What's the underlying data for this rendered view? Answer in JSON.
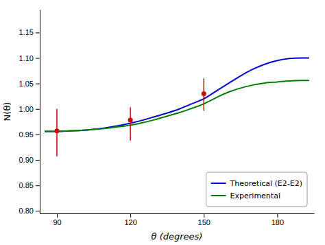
{
  "chart_data": {
    "type": "line",
    "xlabel": "θ (degrees)",
    "ylabel": "N(θ)",
    "xlim": [
      83,
      195
    ],
    "ylim": [
      0.795,
      1.195
    ],
    "xticks": [
      90,
      120,
      150,
      180
    ],
    "yticks": [
      {
        "value": 0.8,
        "label": "0.80"
      },
      0.85,
      {
        "value": 0.9,
        "label": "0.90"
      },
      0.95,
      {
        "value": 1.0,
        "label": "1.00"
      },
      1.05,
      {
        "value": 1.1,
        "label": "1.10"
      },
      1.15
    ],
    "grid": false,
    "legend": "lower right",
    "series": [
      {
        "name": "Theoretical (E2-E2)",
        "type": "line",
        "color": "#0000cc",
        "line_style": "solid",
        "x": [
          85,
          90,
          95,
          100,
          105,
          110,
          115,
          120,
          125,
          130,
          135,
          140,
          145,
          150,
          155,
          160,
          165,
          170,
          175,
          180,
          185,
          190,
          193
        ],
        "values": [
          0.956,
          0.956,
          0.957,
          0.958,
          0.96,
          0.963,
          0.967,
          0.972,
          0.978,
          0.985,
          0.992,
          1.0,
          1.01,
          1.02,
          1.035,
          1.05,
          1.065,
          1.078,
          1.088,
          1.095,
          1.099,
          1.1,
          1.1
        ]
      },
      {
        "name": "Experimental",
        "type": "line",
        "color": "#008000",
        "line_style": "solid",
        "x": [
          85,
          90,
          95,
          100,
          105,
          110,
          115,
          120,
          125,
          130,
          135,
          140,
          145,
          150,
          155,
          160,
          165,
          170,
          175,
          180,
          185,
          190,
          193
        ],
        "values": [
          0.956,
          0.956,
          0.957,
          0.958,
          0.96,
          0.962,
          0.965,
          0.968,
          0.973,
          0.979,
          0.986,
          0.993,
          1.001,
          1.01,
          1.022,
          1.033,
          1.041,
          1.047,
          1.051,
          1.053,
          1.055,
          1.056,
          1.056
        ]
      },
      {
        "type": "scatter",
        "color": "#cc0000",
        "marker": "o",
        "x": [
          90,
          120,
          150
        ],
        "values": [
          0.957,
          0.978,
          1.03
        ],
        "yerr_lower": [
          0.05,
          0.04,
          0.033
        ],
        "yerr_upper": [
          0.043,
          0.025,
          0.03
        ]
      }
    ]
  }
}
